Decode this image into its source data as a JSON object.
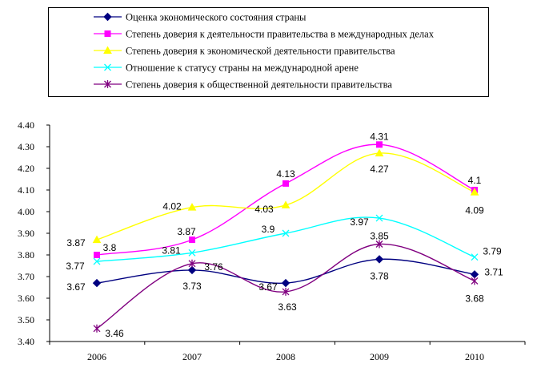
{
  "chart_data": {
    "type": "line",
    "categories": [
      "2006",
      "2007",
      "2008",
      "2009",
      "2010"
    ],
    "ylim": [
      3.4,
      4.4
    ],
    "ytick_step": 0.1,
    "ytick_labels": [
      "3.40",
      "3.50",
      "3.60",
      "3.70",
      "3.80",
      "3.90",
      "4.00",
      "4.10",
      "4.20",
      "4.30",
      "4.40"
    ],
    "grid": false,
    "legend_position": "top",
    "series": [
      {
        "name": "Оценка экономического состояния страны",
        "values": [
          3.67,
          3.73,
          3.67,
          3.78,
          3.71
        ],
        "labels": [
          "3.67",
          "3.73",
          "3.67",
          "3.78",
          "3.71"
        ],
        "color": "#000080",
        "marker": "diamond"
      },
      {
        "name": "Степень доверия к деятельности правительства в международных делах",
        "values": [
          3.8,
          3.87,
          4.13,
          4.31,
          4.1
        ],
        "labels": [
          "3.8",
          "3.87",
          "4.13",
          "4.31",
          "4.1"
        ],
        "color": "#FF00FF",
        "marker": "square"
      },
      {
        "name": "Степень доверия к экономической деятельности правительства",
        "values": [
          3.87,
          4.02,
          4.03,
          4.27,
          4.09
        ],
        "labels": [
          "3.87",
          "4.02",
          "4.03",
          "4.27",
          "4.09"
        ],
        "color": "#FFFF00",
        "marker": "triangle"
      },
      {
        "name": "Отношение к статусу страны на международной арене",
        "values": [
          3.77,
          3.81,
          3.9,
          3.97,
          3.79
        ],
        "labels": [
          "3.77",
          "3.81",
          "3.9",
          "3.97",
          "3.79"
        ],
        "color": "#00FFFF",
        "marker": "x"
      },
      {
        "name": "Степень доверия к общественной деятельности правительства",
        "values": [
          3.46,
          3.76,
          3.63,
          3.85,
          3.68
        ],
        "labels": [
          "3.46",
          "3.76",
          "3.63",
          "3.85",
          "3.68"
        ],
        "color": "#800080",
        "marker": "star"
      }
    ]
  }
}
